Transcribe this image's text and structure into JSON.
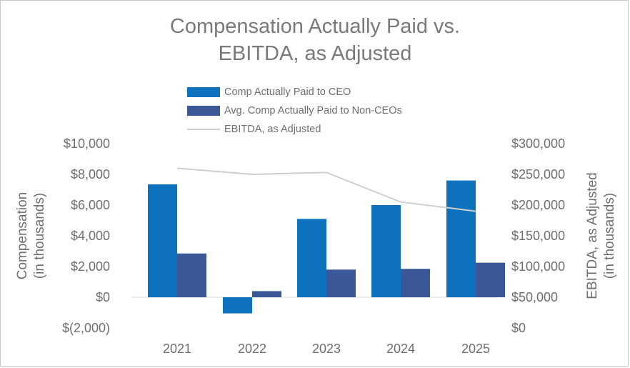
{
  "chart_data": {
    "type": "bar",
    "title_line1": "Compensation Actually Paid vs.",
    "title_line2": "EBITDA, as Adjusted",
    "categories": [
      "2021",
      "2022",
      "2023",
      "2024",
      "2025"
    ],
    "series": [
      {
        "name": "Comp Actually Paid to CEO",
        "kind": "bar",
        "axis": "left",
        "color": "#0f72bf",
        "values": [
          7350,
          -1050,
          5100,
          6000,
          7600
        ]
      },
      {
        "name": "Avg. Comp Actually Paid to Non-CEOs",
        "kind": "bar",
        "axis": "left",
        "color": "#3b5798",
        "values": [
          2850,
          400,
          1800,
          1850,
          2250
        ]
      },
      {
        "name": "EBITDA, as Adjusted",
        "kind": "line",
        "axis": "right",
        "color": "#cfcfcf",
        "values": [
          260000,
          250000,
          253000,
          205000,
          190000
        ]
      }
    ],
    "left_axis": {
      "label_line1": "Compensation",
      "label_line2": "(in thousands)",
      "ylim": [
        -2000,
        10000
      ],
      "ticks": [
        10000,
        8000,
        6000,
        4000,
        2000,
        0,
        -2000
      ],
      "tick_labels": [
        "$10,000",
        "$8,000",
        "$6,000",
        "$4,000",
        "$2,000",
        "$0",
        "$(2,000)"
      ]
    },
    "right_axis": {
      "label_line1": "EBITDA, as Adjusted",
      "label_line2": "(in thousands)",
      "ylim": [
        0,
        300000
      ],
      "ticks": [
        300000,
        250000,
        200000,
        150000,
        100000,
        50000,
        0
      ],
      "tick_labels": [
        "$300,000",
        "$250,000",
        "$200,000",
        "$150,000",
        "$100,000",
        "$50,000",
        "$0"
      ]
    },
    "legend_placement": "top-center",
    "grid": false
  }
}
